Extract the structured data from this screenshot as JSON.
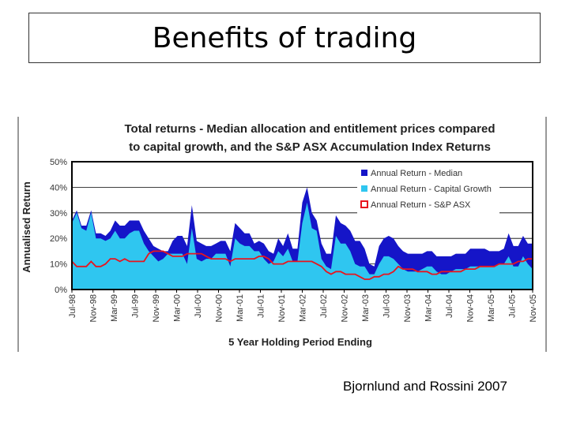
{
  "slide": {
    "title": "Benefits of trading",
    "caption": "Bjornlund and Rossini 2007"
  },
  "chart_data": {
    "type": "area",
    "title_line1": "Total returns - Median allocation and entitlement prices compared",
    "title_line2": "to capital growth, and the S&P ASX Accumulation Index Returns",
    "xlabel": "5 Year Holding Period Ending",
    "ylabel": "Annualised Return",
    "ylim": [
      0,
      50
    ],
    "yticks": [
      "0%",
      "10%",
      "20%",
      "30%",
      "40%",
      "50%"
    ],
    "x_tick_labels": [
      "Jul-98",
      "Nov-98",
      "Mar-99",
      "Jul-99",
      "Nov-99",
      "Mar-00",
      "Jul-00",
      "Nov-00",
      "Mar-01",
      "Jul-01",
      "Nov-01",
      "Mar-02",
      "Jul-02",
      "Nov-02",
      "Mar-03",
      "Jul-03",
      "Nov-03",
      "Mar-04",
      "Jul-04",
      "Nov-04",
      "Mar-05",
      "Jul-05",
      "Nov-05"
    ],
    "legend": [
      "Annual Return - Median",
      "Annual Return - Capital Growth",
      "Annual Return - S&P ASX"
    ],
    "colors": {
      "median": "#1515c8",
      "capital": "#2fc6f0",
      "sp": "#e8141e",
      "border": "#000000"
    },
    "series": [
      {
        "name": "Annual Return - Median",
        "values": [
          27,
          31,
          25,
          25,
          31,
          22,
          22,
          21,
          23,
          27,
          25,
          25,
          27,
          27,
          27,
          23,
          20,
          17,
          16,
          15,
          15,
          19,
          21,
          21,
          17,
          33,
          19,
          18,
          17,
          17,
          18,
          19,
          19,
          15,
          26,
          24,
          22,
          22,
          18,
          19,
          18,
          15,
          14,
          20,
          17,
          22,
          16,
          16,
          34,
          40,
          30,
          27,
          18,
          14,
          14,
          29,
          26,
          25,
          23,
          19,
          19,
          16,
          10,
          9,
          17,
          20,
          21,
          20,
          17,
          15,
          14,
          14,
          14,
          14,
          15,
          15,
          13,
          13,
          13,
          13,
          14,
          14,
          14,
          16,
          16,
          16,
          16,
          15,
          15,
          15,
          16,
          22,
          17,
          17,
          21,
          18,
          18
        ]
      },
      {
        "name": "Annual Return - Capital Growth",
        "values": [
          26,
          30,
          24,
          23,
          30,
          20,
          20,
          19,
          20,
          23,
          20,
          20,
          22,
          23,
          23,
          18,
          15,
          13,
          11,
          12,
          14,
          14,
          14,
          14,
          10,
          24,
          12,
          11,
          12,
          12,
          14,
          14,
          14,
          9,
          20,
          18,
          17,
          17,
          15,
          15,
          12,
          10,
          11,
          15,
          13,
          16,
          11,
          11,
          26,
          34,
          24,
          23,
          12,
          9,
          8,
          21,
          18,
          18,
          15,
          10,
          9,
          9,
          6,
          6,
          10,
          13,
          13,
          12,
          10,
          8,
          7,
          7,
          7,
          8,
          9,
          9,
          7,
          6,
          6,
          7,
          8,
          8,
          8,
          9,
          9,
          9,
          9,
          9,
          9,
          10,
          10,
          13,
          9,
          9,
          13,
          10,
          8
        ]
      },
      {
        "name": "Annual Return - S&P ASX",
        "values": [
          11,
          9,
          9,
          9,
          11,
          9,
          9,
          10,
          12,
          12,
          11,
          12,
          11,
          11,
          11,
          11,
          14,
          15,
          15,
          15,
          14,
          13,
          13,
          13,
          14,
          14,
          14,
          14,
          13,
          12,
          12,
          12,
          12,
          11,
          12,
          12,
          12,
          12,
          12,
          13,
          13,
          12,
          10,
          10,
          10,
          11,
          11,
          11,
          11,
          11,
          11,
          10,
          9,
          7,
          6,
          7,
          7,
          6,
          6,
          6,
          5,
          4,
          4,
          5,
          5,
          6,
          6,
          7,
          9,
          8,
          8,
          8,
          7,
          7,
          7,
          6,
          6,
          7,
          7,
          7,
          7,
          7,
          8,
          8,
          8,
          9,
          9,
          9,
          9,
          10,
          10,
          10,
          10,
          11,
          11,
          12,
          12
        ]
      }
    ]
  }
}
